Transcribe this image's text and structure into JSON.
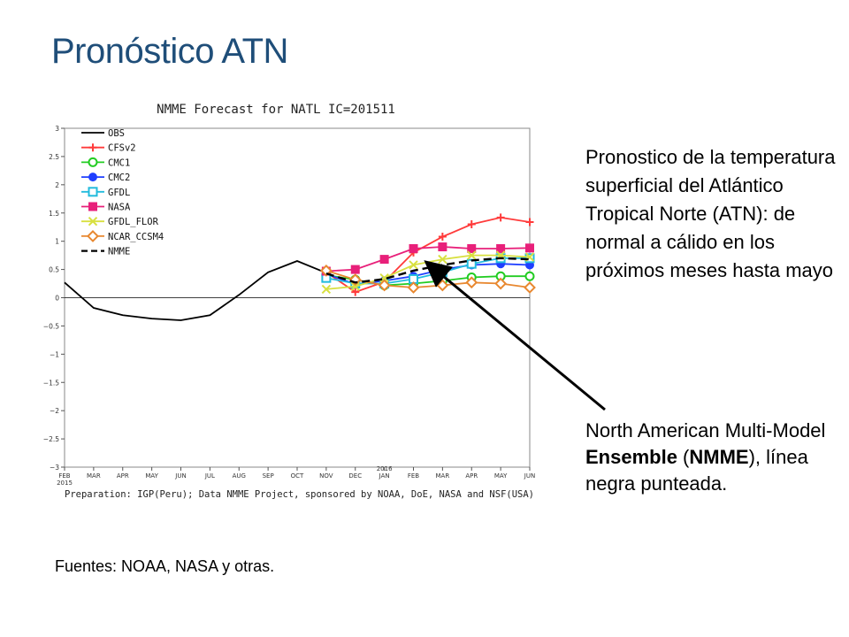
{
  "slide": {
    "title": "Pronóstico ATN",
    "description": "Pronostico de la temperatura superficial del Atlántico Tropical Norte (ATN): de normal a cálido en los próximos meses hasta mayo",
    "nmme_note": {
      "part1": "North American Multi-Model ",
      "bold1": "Ensemble",
      "part2": " (",
      "bold2": "NMME",
      "part3": "), línea negra punteada."
    },
    "sources": "Fuentes: NOAA, NASA y otras."
  },
  "chart_data": {
    "type": "line",
    "title": "NMME Forecast for NATL IC=201511",
    "footer": "Preparation: IGP(Peru); Data NMME Project, sponsored by NOAA, DoE, NASA and NSF(USA)",
    "x_labels": [
      "FEB",
      "MAR",
      "APR",
      "MAY",
      "JUN",
      "JUL",
      "AUG",
      "SEP",
      "OCT",
      "NOV",
      "DEC",
      "JAN",
      "FEB",
      "MAR",
      "APR",
      "MAY",
      "JUN"
    ],
    "x_sublabels": {
      "0": "2015",
      "11": "2016"
    },
    "ylim": [
      -3,
      3
    ],
    "yticks": [
      3,
      2.5,
      2,
      1.5,
      1,
      0.5,
      0,
      -0.5,
      -1,
      -1.5,
      -2,
      -2.5,
      -3
    ],
    "ytick_labels": [
      "3",
      "2.5",
      "2",
      "1.5",
      "1",
      "0.5",
      "0",
      "−0.5",
      "−1",
      "−1.5",
      "−2",
      "−2.5",
      "−3"
    ],
    "zero_line": true,
    "legend_position": "top-left",
    "series": [
      {
        "name": "OBS",
        "color": "#000000",
        "marker": "none",
        "dash": false,
        "start": 0,
        "values": [
          0.27,
          -0.18,
          -0.31,
          -0.37,
          -0.4,
          -0.31,
          0.05,
          0.45,
          0.65,
          0.44
        ]
      },
      {
        "name": "CFSv2",
        "color": "#FF3B3B",
        "marker": "plus",
        "dash": false,
        "start": 9,
        "values": [
          0.45,
          0.1,
          0.28,
          0.8,
          1.08,
          1.3,
          1.42,
          1.34
        ]
      },
      {
        "name": "CMC1",
        "color": "#22CC22",
        "marker": "circle-open",
        "dash": false,
        "start": 9,
        "values": [
          0.4,
          0.32,
          0.22,
          0.25,
          0.3,
          0.36,
          0.38,
          0.38
        ]
      },
      {
        "name": "CMC2",
        "color": "#1F3FFF",
        "marker": "circle-filled",
        "dash": false,
        "start": 9,
        "values": [
          0.42,
          0.24,
          0.3,
          0.38,
          0.5,
          0.58,
          0.6,
          0.58
        ]
      },
      {
        "name": "GFDL",
        "color": "#22BBDD",
        "marker": "square-open",
        "dash": false,
        "start": 9,
        "values": [
          0.35,
          0.25,
          0.25,
          0.33,
          0.45,
          0.6,
          0.7,
          0.7
        ]
      },
      {
        "name": "NASA",
        "color": "#E8207A",
        "marker": "square-filled",
        "dash": false,
        "start": 9,
        "values": [
          0.47,
          0.5,
          0.68,
          0.87,
          0.9,
          0.87,
          0.87,
          0.88
        ]
      },
      {
        "name": "GFDL_FLOR",
        "color": "#D8E040",
        "marker": "x",
        "dash": false,
        "start": 9,
        "values": [
          0.15,
          0.2,
          0.35,
          0.58,
          0.68,
          0.75,
          0.75,
          0.72
        ]
      },
      {
        "name": "NCAR_CCSM4",
        "color": "#E88830",
        "marker": "diamond-open",
        "dash": false,
        "start": 9,
        "values": [
          0.48,
          0.32,
          0.22,
          0.18,
          0.22,
          0.27,
          0.25,
          0.18
        ]
      },
      {
        "name": "NMME",
        "color": "#000000",
        "marker": "none",
        "dash": true,
        "start": 9,
        "values": [
          0.43,
          0.27,
          0.33,
          0.48,
          0.58,
          0.66,
          0.7,
          0.68
        ]
      }
    ]
  }
}
